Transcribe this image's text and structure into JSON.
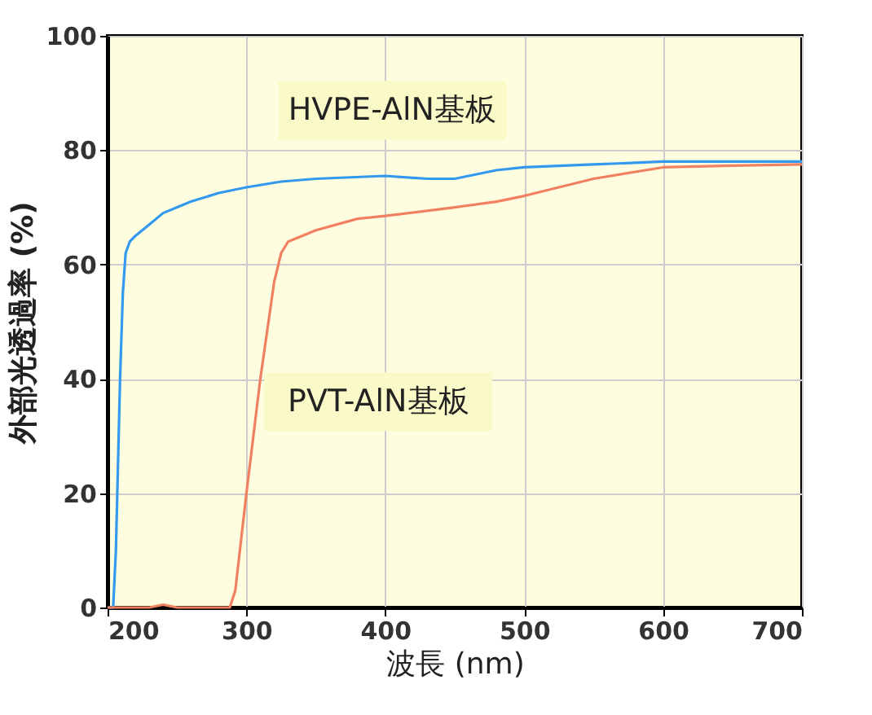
{
  "chart_data": {
    "type": "line",
    "xlabel": "波長 (nm)",
    "ylabel": "外部光透過率 (%)",
    "xlim": [
      200,
      700
    ],
    "xticks": [
      200,
      300,
      400,
      500,
      600,
      700
    ],
    "ylim": [
      0,
      100
    ],
    "yticks": [
      0,
      20,
      40,
      60,
      80,
      100
    ],
    "grid": true,
    "legend": false,
    "line_style": "solid",
    "marker": "none",
    "series": [
      {
        "name": "HVPE-AlN基板",
        "color": "#3399ee",
        "x": [
          200,
          204,
          206,
          207,
          209,
          211,
          213,
          216,
          220,
          230,
          240,
          260,
          280,
          300,
          325,
          350,
          400,
          430,
          450,
          480,
          500,
          550,
          600,
          650,
          700
        ],
        "values": [
          0,
          0,
          10,
          20,
          40,
          55,
          62,
          64,
          65,
          67,
          69,
          71,
          72.5,
          73.5,
          74.5,
          75,
          75.5,
          75,
          75,
          76.5,
          77,
          77.5,
          78,
          78,
          78
        ]
      },
      {
        "name": "PVT-AlN基板",
        "color": "#f08060",
        "x": [
          200,
          230,
          240,
          250,
          288,
          292,
          300,
          310,
          320,
          325,
          330,
          350,
          380,
          400,
          450,
          480,
          500,
          550,
          600,
          650,
          700
        ],
        "values": [
          0,
          0,
          0.5,
          0,
          0,
          3,
          20,
          40,
          57,
          62,
          64,
          66,
          68,
          68.5,
          70,
          71,
          72,
          75,
          77,
          77.3,
          77.5
        ]
      }
    ]
  }
}
